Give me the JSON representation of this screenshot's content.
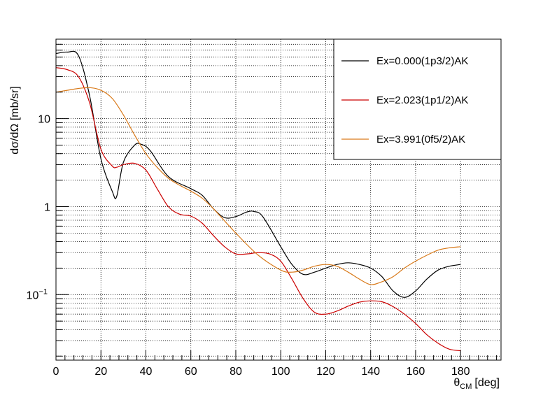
{
  "chart_data": {
    "type": "line",
    "title": "",
    "xlabel": "θ",
    "xlabel_sub": "CM",
    "xlabel_unit": "[deg]",
    "ylabel": "dσ/dΩ [mb/sr]",
    "xlim": [
      0,
      198
    ],
    "ylim": [
      0.018,
      80
    ],
    "yscale": "log",
    "grid": true,
    "legend_position": "top-right",
    "x_ticks": [
      "0",
      "20",
      "40",
      "60",
      "80",
      "100",
      "120",
      "140",
      "160",
      "180"
    ],
    "y_ticks": [
      {
        "value": 0.1,
        "base": "10",
        "exp": "−1"
      },
      {
        "value": 1,
        "base": "1",
        "exp": ""
      },
      {
        "value": 10,
        "base": "10",
        "exp": ""
      }
    ],
    "series": [
      {
        "name": "Ex=0.000(1p3/2)AK",
        "color": "#000000",
        "x": [
          0,
          5,
          10,
          15,
          20,
          25,
          27,
          30,
          35,
          38,
          42,
          50,
          60,
          65,
          70,
          75,
          80,
          85,
          88,
          92,
          100,
          105,
          110,
          115,
          120,
          125,
          130,
          135,
          140,
          145,
          150,
          155,
          160,
          165,
          170,
          175,
          180
        ],
        "y": [
          55,
          57,
          52,
          18,
          3.5,
          1.5,
          1.3,
          3.2,
          5.0,
          5.1,
          4.3,
          2.2,
          1.6,
          1.35,
          0.95,
          0.75,
          0.77,
          0.87,
          0.88,
          0.77,
          0.35,
          0.22,
          0.17,
          0.18,
          0.2,
          0.22,
          0.23,
          0.22,
          0.2,
          0.16,
          0.11,
          0.093,
          0.11,
          0.15,
          0.19,
          0.21,
          0.22
        ]
      },
      {
        "name": "Ex=2.023(1p1/2)AK",
        "color": "#cc0000",
        "x": [
          0,
          5,
          10,
          15,
          20,
          25,
          27,
          30,
          35,
          40,
          45,
          50,
          55,
          60,
          65,
          70,
          75,
          80,
          85,
          90,
          95,
          100,
          105,
          110,
          115,
          120,
          125,
          130,
          135,
          140,
          145,
          150,
          155,
          160,
          165,
          170,
          175,
          180
        ],
        "y": [
          38,
          36,
          30,
          15,
          4.5,
          2.9,
          2.8,
          3.0,
          3.1,
          2.6,
          1.6,
          1.0,
          0.82,
          0.78,
          0.65,
          0.47,
          0.35,
          0.29,
          0.29,
          0.3,
          0.29,
          0.24,
          0.15,
          0.09,
          0.063,
          0.06,
          0.065,
          0.074,
          0.082,
          0.085,
          0.083,
          0.073,
          0.06,
          0.047,
          0.035,
          0.028,
          0.024,
          0.023
        ]
      },
      {
        "name": "Ex=3.991(0f5/2)AK",
        "color": "#d97a1a",
        "x": [
          0,
          5,
          10,
          15,
          20,
          25,
          30,
          35,
          40,
          45,
          50,
          55,
          60,
          65,
          70,
          80,
          90,
          100,
          105,
          110,
          115,
          120,
          125,
          130,
          135,
          140,
          145,
          150,
          155,
          160,
          165,
          170,
          175,
          180
        ],
        "y": [
          20,
          21,
          22,
          22.5,
          21,
          17,
          11,
          6.5,
          4.0,
          2.8,
          2.1,
          1.75,
          1.5,
          1.25,
          0.95,
          0.5,
          0.28,
          0.19,
          0.18,
          0.19,
          0.21,
          0.22,
          0.21,
          0.18,
          0.15,
          0.13,
          0.14,
          0.16,
          0.2,
          0.24,
          0.28,
          0.32,
          0.34,
          0.35
        ]
      }
    ]
  }
}
